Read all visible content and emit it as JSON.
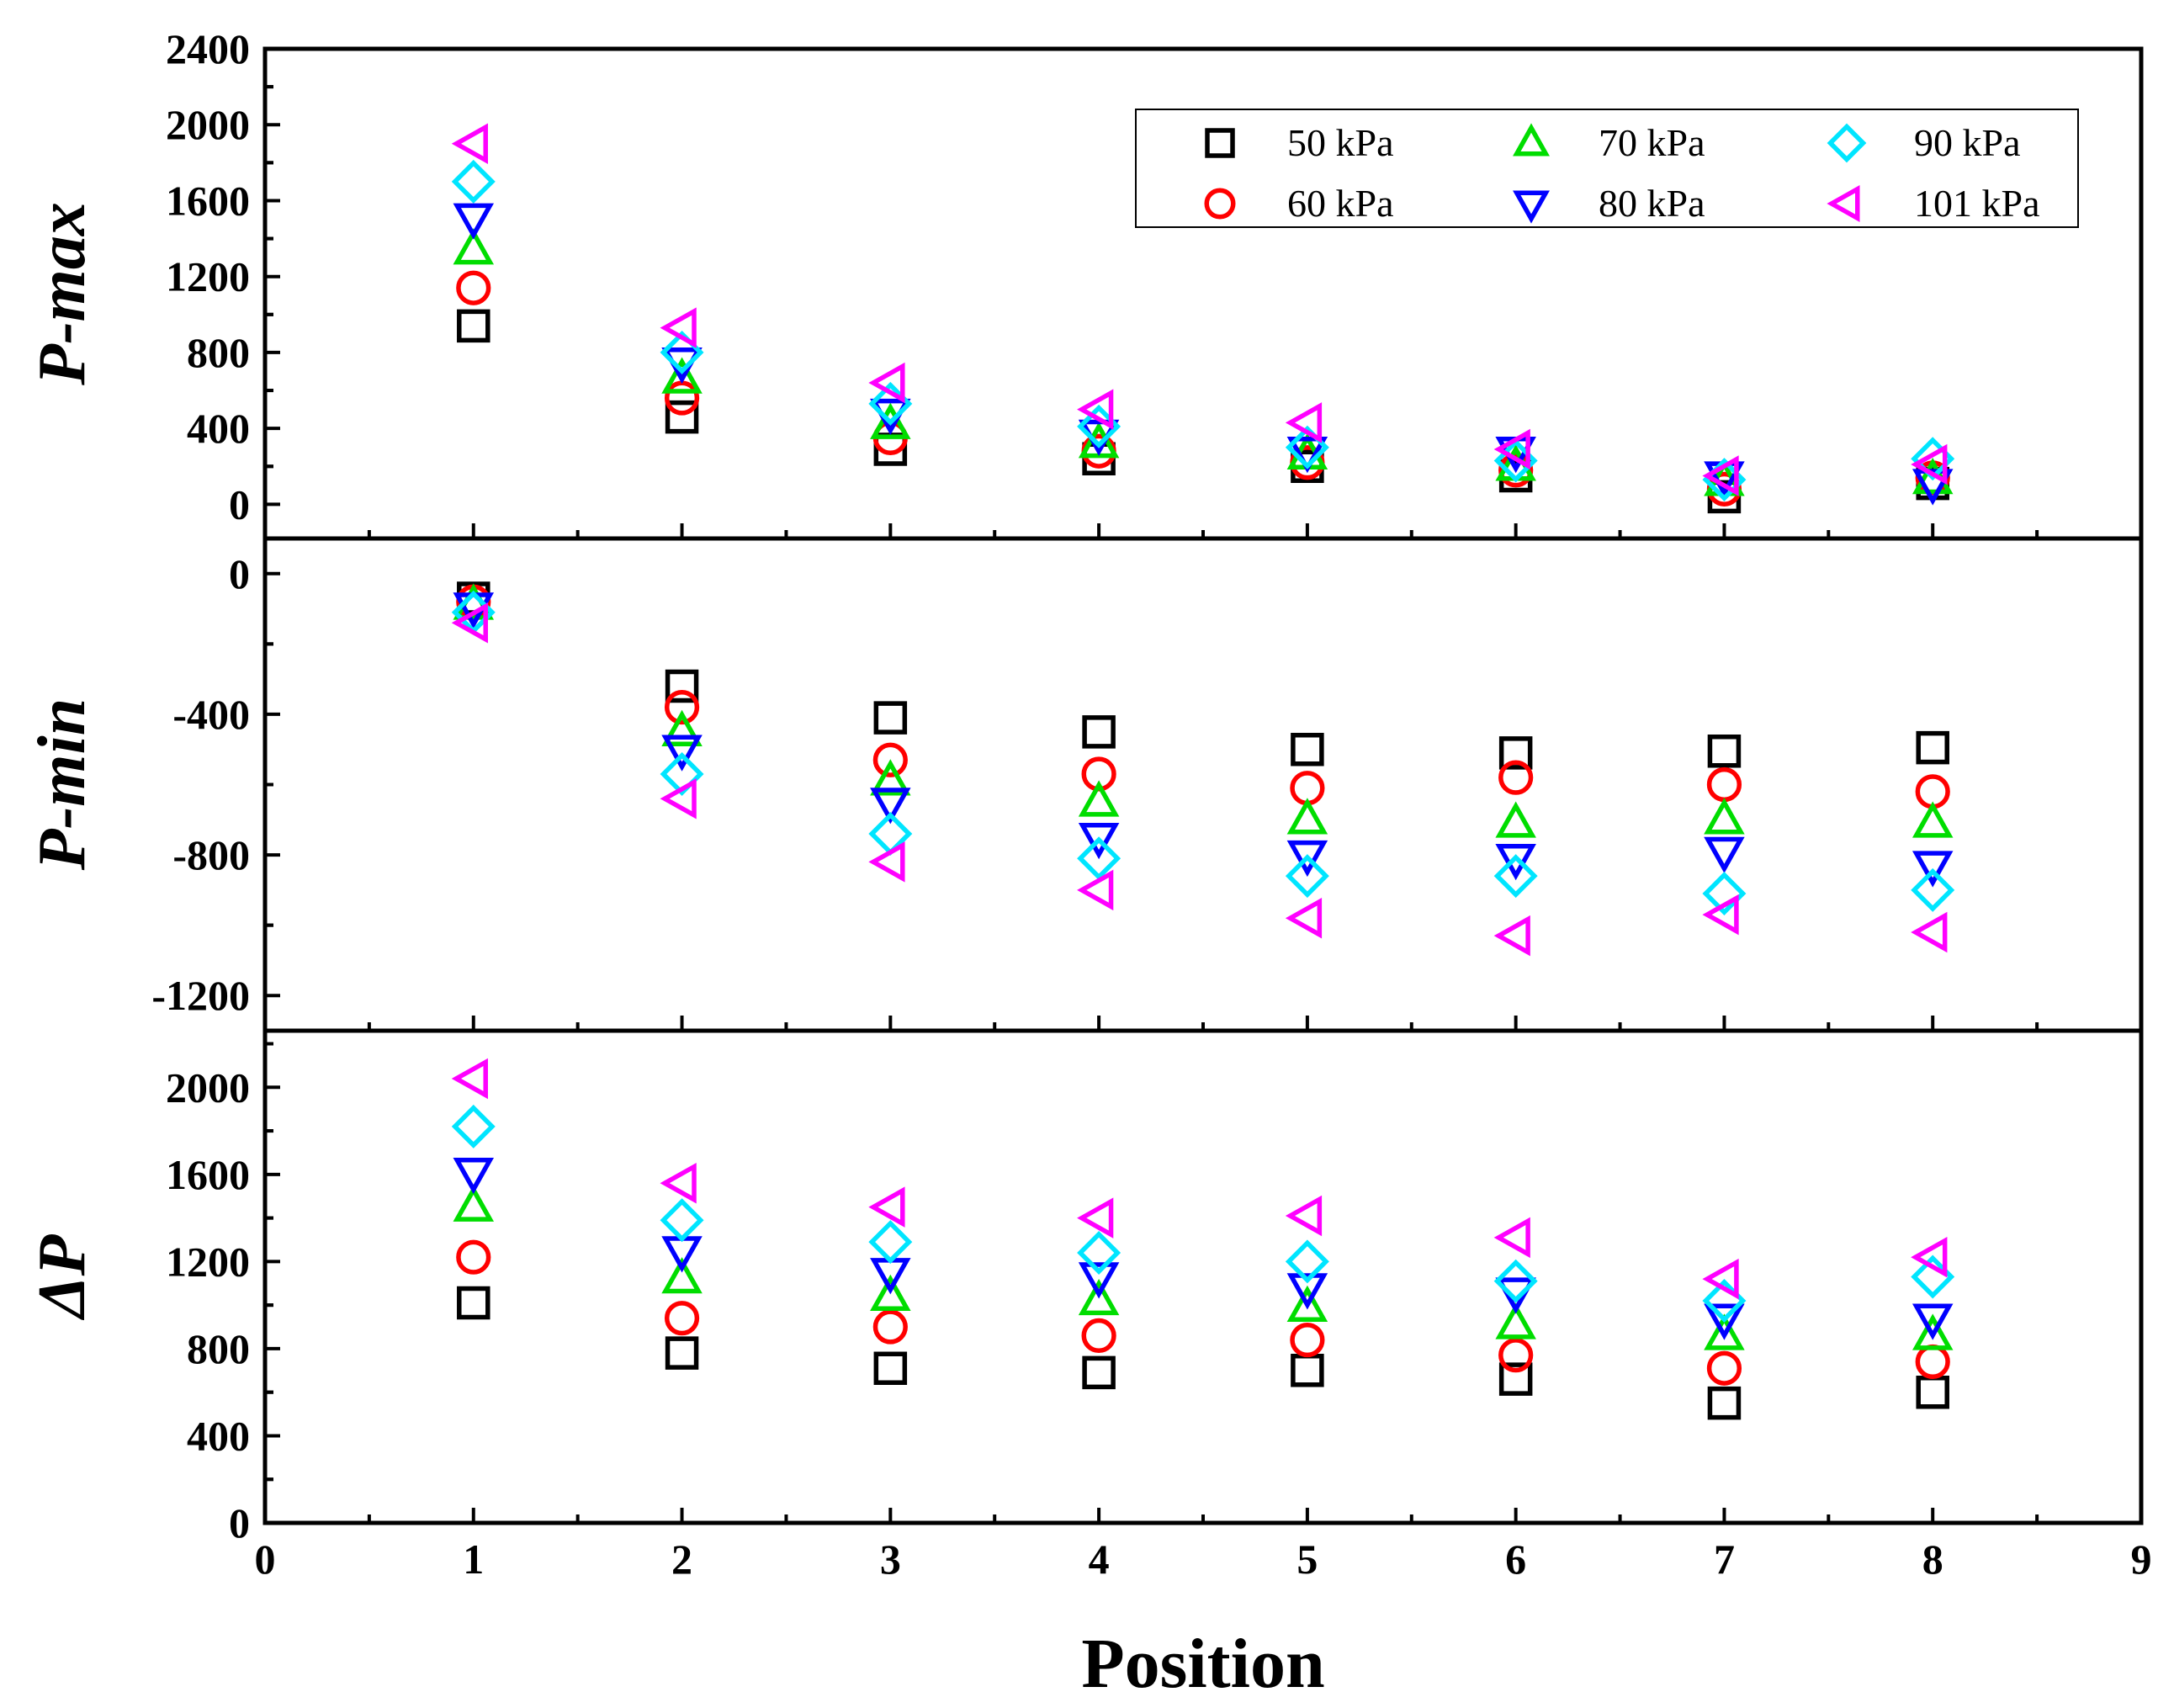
{
  "chart_data": {
    "type": "scatter",
    "xlabel": "Position",
    "xlim": [
      0,
      9
    ],
    "x_ticks": [
      "0",
      "1",
      "2",
      "3",
      "4",
      "5",
      "6",
      "7",
      "8",
      "9"
    ],
    "x": [
      1,
      2,
      3,
      4,
      5,
      6,
      7,
      8
    ],
    "legend": {
      "placement": "top-right of top panel, 3 columns",
      "entries": [
        {
          "name": "50 kPa",
          "color": "#000000",
          "marker": "square"
        },
        {
          "name": "60 kPa",
          "color": "#ff0000",
          "marker": "circle"
        },
        {
          "name": "70 kPa",
          "color": "#00dd00",
          "marker": "triangle-up"
        },
        {
          "name": "80 kPa",
          "color": "#0000ff",
          "marker": "triangle-down"
        },
        {
          "name": "90 kPa",
          "color": "#00e5ff",
          "marker": "diamond"
        },
        {
          "name": "101 kPa",
          "color": "#ff00ff",
          "marker": "triangle-left"
        }
      ]
    },
    "panels": [
      {
        "ylabel": "P-max",
        "ylim": [
          -180,
          2400
        ],
        "y_ticks": [
          0,
          400,
          800,
          1200,
          1600,
          2000,
          2400
        ],
        "y_tick_labels": [
          "0",
          "400",
          "800",
          "1200",
          "1600",
          "2000",
          "2400"
        ],
        "series": [
          {
            "name": "50 kPa",
            "values": [
              940,
              460,
              290,
              240,
              200,
              150,
              40,
              110
            ]
          },
          {
            "name": "60 kPa",
            "values": [
              1140,
              560,
              350,
              280,
              220,
              180,
              80,
              140
            ]
          },
          {
            "name": "70 kPa",
            "values": [
              1340,
              660,
              420,
              320,
              260,
              200,
              120,
              130
            ]
          },
          {
            "name": "80 kPa",
            "values": [
              1510,
              750,
              480,
              370,
              280,
              280,
              150,
              110
            ]
          },
          {
            "name": "90 kPa",
            "values": [
              1700,
              800,
              530,
              410,
              300,
              230,
              130,
              240
            ]
          },
          {
            "name": "101 kPa",
            "values": [
              1900,
              930,
              640,
              500,
              430,
              290,
              150,
              210
            ]
          }
        ]
      },
      {
        "ylabel": "P-min",
        "ylim": [
          -1300,
          100
        ],
        "y_ticks": [
          0,
          -400,
          -800,
          -1200
        ],
        "y_tick_labels": [
          "0",
          "-400",
          "-800",
          "-1200"
        ],
        "series": [
          {
            "name": "50 kPa",
            "values": [
              -70,
              -320,
              -410,
              -450,
              -500,
              -510,
              -505,
              -495
            ]
          },
          {
            "name": "60 kPa",
            "values": [
              -80,
              -380,
              -530,
              -570,
              -610,
              -580,
              -600,
              -620
            ]
          },
          {
            "name": "70 kPa",
            "values": [
              -90,
              -450,
              -590,
              -650,
              -700,
              -710,
              -700,
              -710
            ]
          },
          {
            "name": "80 kPa",
            "values": [
              -95,
              -500,
              -650,
              -750,
              -800,
              -810,
              -790,
              -830
            ]
          },
          {
            "name": "90 kPa",
            "values": [
              -110,
              -570,
              -740,
              -810,
              -860,
              -860,
              -910,
              -900
            ]
          },
          {
            "name": "101 kPa",
            "values": [
              -140,
              -640,
              -820,
              -900,
              -980,
              -1030,
              -970,
              -1020
            ]
          }
        ]
      },
      {
        "ylabel": "ΔP",
        "ylim": [
          0,
          2260
        ],
        "y_ticks": [
          0,
          400,
          800,
          1200,
          1600,
          2000
        ],
        "y_tick_labels": [
          "0",
          "400",
          "800",
          "1200",
          "1600",
          "2000"
        ],
        "series": [
          {
            "name": "50 kPa",
            "values": [
              1010,
              780,
              710,
              690,
              700,
              660,
              550,
              600
            ]
          },
          {
            "name": "60 kPa",
            "values": [
              1220,
              940,
              900,
              860,
              840,
              770,
              710,
              740
            ]
          },
          {
            "name": "70 kPa",
            "values": [
              1450,
              1120,
              1040,
              1020,
              990,
              910,
              860,
              860
            ]
          },
          {
            "name": "80 kPa",
            "values": [
              1610,
              1250,
              1150,
              1130,
              1080,
              1060,
              940,
              940
            ]
          },
          {
            "name": "90 kPa",
            "values": [
              1820,
              1390,
              1290,
              1240,
              1200,
              1110,
              1020,
              1130
            ]
          },
          {
            "name": "101 kPa",
            "values": [
              2040,
              1560,
              1450,
              1400,
              1410,
              1310,
              1120,
              1220
            ]
          }
        ]
      }
    ]
  }
}
